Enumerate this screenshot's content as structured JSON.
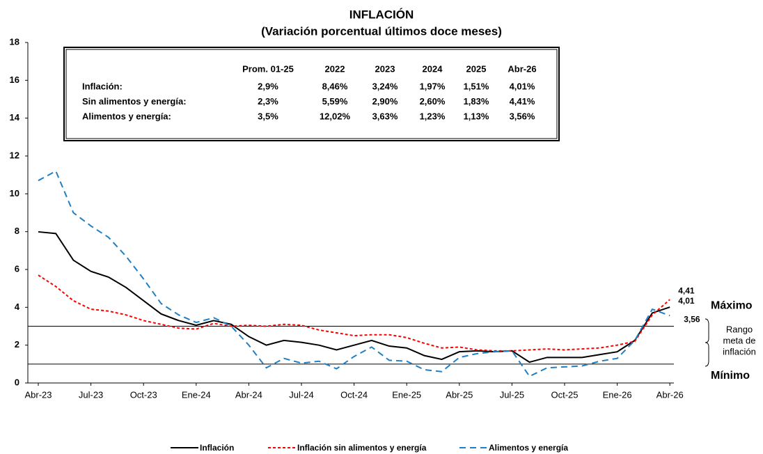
{
  "chart_data": {
    "type": "line",
    "title": "INFLACIÓN",
    "subtitle": "(Variación porcentual últimos doce meses)",
    "categories": [
      "Abr-23",
      null,
      null,
      "Jul-23",
      null,
      null,
      "Oct-23",
      null,
      null,
      "Ene-24",
      null,
      null,
      "Abr-24",
      null,
      null,
      "Jul-24",
      null,
      null,
      "Oct-24",
      null,
      null,
      "Ene-25",
      null,
      null,
      "Abr-25",
      null,
      null,
      "Jul-25",
      null,
      null,
      "Oct-25",
      null,
      null,
      "Ene-26",
      null,
      null,
      "Abr-26"
    ],
    "ylim": [
      0,
      18
    ],
    "yticks": [
      0,
      2,
      4,
      6,
      8,
      10,
      12,
      14,
      16,
      18
    ],
    "grid": false,
    "series": [
      {
        "name": "Inflación",
        "color": "#000000",
        "style": "solid",
        "values": [
          7.99,
          7.9,
          6.49,
          5.9,
          5.6,
          5.05,
          4.35,
          3.65,
          3.3,
          3.05,
          3.3,
          3.1,
          2.45,
          2.0,
          2.25,
          2.15,
          2.0,
          1.75,
          2.0,
          2.25,
          1.95,
          1.85,
          1.45,
          1.25,
          1.65,
          1.7,
          1.65,
          1.7,
          1.1,
          1.35,
          1.35,
          1.35,
          1.5,
          1.65,
          2.25,
          3.7,
          4.01
        ],
        "value_labels": [
          null,
          null,
          null,
          null,
          null,
          null,
          null,
          null,
          null,
          null,
          null,
          null,
          null,
          null,
          null,
          null,
          null,
          null,
          null,
          null,
          null,
          null,
          null,
          null,
          null,
          null,
          null,
          null,
          null,
          null,
          null,
          null,
          null,
          null,
          null,
          null,
          "4,01"
        ]
      },
      {
        "name": "Inflación sin alimentos y energía",
        "color": "#ff0000",
        "style": "dotted",
        "values": [
          5.7,
          5.1,
          4.35,
          3.9,
          3.8,
          3.6,
          3.3,
          3.1,
          2.9,
          2.85,
          3.15,
          3.0,
          3.05,
          3.0,
          3.1,
          3.05,
          2.8,
          2.65,
          2.5,
          2.55,
          2.55,
          2.4,
          2.1,
          1.85,
          1.9,
          1.75,
          1.7,
          1.7,
          1.75,
          1.8,
          1.75,
          1.8,
          1.85,
          2.0,
          2.2,
          3.6,
          4.41
        ],
        "value_labels": [
          null,
          null,
          null,
          null,
          null,
          null,
          null,
          null,
          null,
          null,
          null,
          null,
          null,
          null,
          null,
          null,
          null,
          null,
          null,
          null,
          null,
          null,
          null,
          null,
          null,
          null,
          null,
          null,
          null,
          null,
          null,
          null,
          null,
          null,
          null,
          null,
          "4,41"
        ]
      },
      {
        "name": "Alimentos y energía",
        "color": "#1f7fc4",
        "style": "dashed",
        "values": [
          10.7,
          11.2,
          9.0,
          8.3,
          7.7,
          6.7,
          5.5,
          4.2,
          3.6,
          3.2,
          3.45,
          3.0,
          2.0,
          0.8,
          1.3,
          1.05,
          1.15,
          0.75,
          1.4,
          1.9,
          1.2,
          1.15,
          0.7,
          0.6,
          1.35,
          1.55,
          1.65,
          1.7,
          0.35,
          0.8,
          0.85,
          0.9,
          1.15,
          1.3,
          2.25,
          3.9,
          3.56
        ],
        "value_labels": [
          null,
          null,
          null,
          null,
          null,
          null,
          null,
          null,
          null,
          null,
          null,
          null,
          null,
          null,
          null,
          null,
          null,
          null,
          null,
          null,
          null,
          null,
          null,
          null,
          null,
          null,
          null,
          null,
          null,
          null,
          null,
          null,
          null,
          null,
          null,
          null,
          "3,56"
        ]
      }
    ],
    "reference_lines": [
      {
        "value": 3,
        "label": "Máximo"
      },
      {
        "value": 1,
        "label": "Mínimo"
      }
    ],
    "range_label": [
      "Rango",
      "meta de",
      "inflación"
    ],
    "table": {
      "columns": [
        "Prom. 01-25",
        "2022",
        "2023",
        "2024",
        "2025",
        "Abr-26"
      ],
      "rows": [
        {
          "label": "Inflación:",
          "cells": [
            "2,9%",
            "8,46%",
            "3,24%",
            "1,97%",
            "1,51%",
            "4,01%"
          ]
        },
        {
          "label": "Sin alimentos y energía:",
          "cells": [
            "2,3%",
            "5,59%",
            "2,90%",
            "2,60%",
            "1,83%",
            "4,41%"
          ]
        },
        {
          "label": "Alimentos y energía:",
          "cells": [
            "3,5%",
            "12,02%",
            "3,63%",
            "1,23%",
            "1,13%",
            "3,56%"
          ]
        }
      ]
    }
  }
}
